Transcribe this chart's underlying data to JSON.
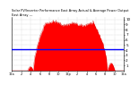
{
  "title": "Solar PV/Inverter Performance East Array Actual & Average Power Output",
  "subtitle": "East Array ---",
  "bg_color": "#ffffff",
  "plot_bg": "#ffffff",
  "grid_color": "#b0b0b0",
  "fill_color": "#ff0000",
  "line_color": "#cc0000",
  "avg_line_color": "#0000ff",
  "avg_value": 4.2,
  "y_max": 10.5,
  "y_min": 0,
  "y_ticks": [
    1,
    2,
    3,
    4,
    5,
    6,
    7,
    8,
    9,
    10
  ],
  "n_points": 288,
  "x_tick_labels": [
    "12a",
    "2",
    "4",
    "6",
    "8",
    "10",
    "12p",
    "2",
    "4",
    "6",
    "8",
    "10",
    "12a"
  ],
  "x_tick_positions": [
    0,
    24,
    48,
    72,
    96,
    120,
    144,
    168,
    192,
    216,
    240,
    264,
    288
  ]
}
